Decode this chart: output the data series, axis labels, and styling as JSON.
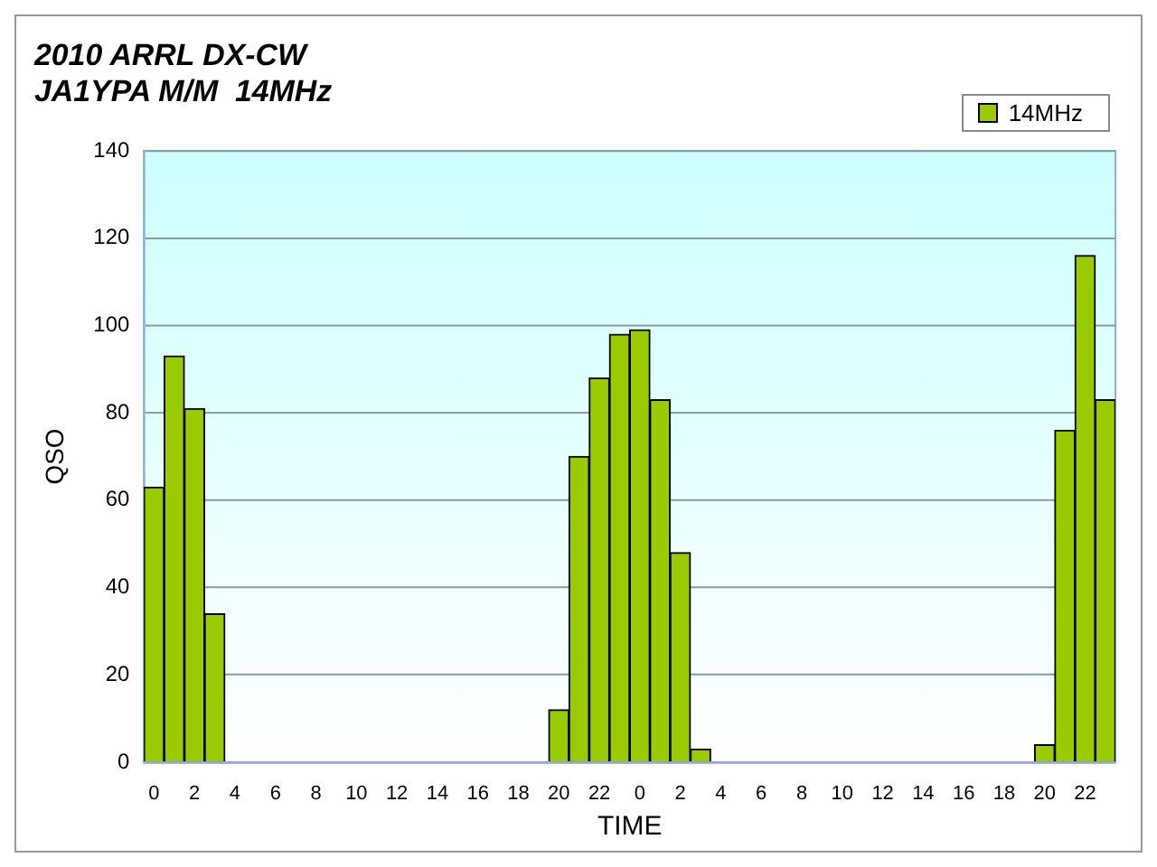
{
  "chart_data": {
    "type": "bar",
    "title": [
      "2010 ARRL DX-CW",
      "JA1YPA M/M  14MHz"
    ],
    "xlabel": "TIME",
    "ylabel": "QSO",
    "categories": [
      "0",
      null,
      "2",
      null,
      "4",
      null,
      "6",
      null,
      "8",
      null,
      "10",
      null,
      "12",
      null,
      "14",
      null,
      "16",
      null,
      "18",
      null,
      "20",
      null,
      "22",
      null,
      "0",
      null,
      "2",
      null,
      "4",
      null,
      "6",
      null,
      "8",
      null,
      "10",
      null,
      "12",
      null,
      "14",
      null,
      "16",
      null,
      "18",
      null,
      "20",
      null,
      "22",
      null
    ],
    "series": [
      {
        "name": "14MHz",
        "color": "#99cc00",
        "values": [
          63,
          93,
          81,
          34,
          0,
          0,
          0,
          0,
          0,
          0,
          0,
          0,
          0,
          0,
          0,
          0,
          0,
          0,
          0,
          0,
          12,
          70,
          88,
          98,
          99,
          83,
          48,
          3,
          0,
          0,
          0,
          0,
          0,
          0,
          0,
          0,
          0,
          0,
          0,
          0,
          0,
          0,
          0,
          0,
          4,
          76,
          116,
          83
        ]
      }
    ],
    "ylim": [
      0,
      140
    ],
    "yticks": [
      0,
      20,
      40,
      60,
      80,
      100,
      120,
      140
    ],
    "grid": "y",
    "legend": "top right"
  }
}
